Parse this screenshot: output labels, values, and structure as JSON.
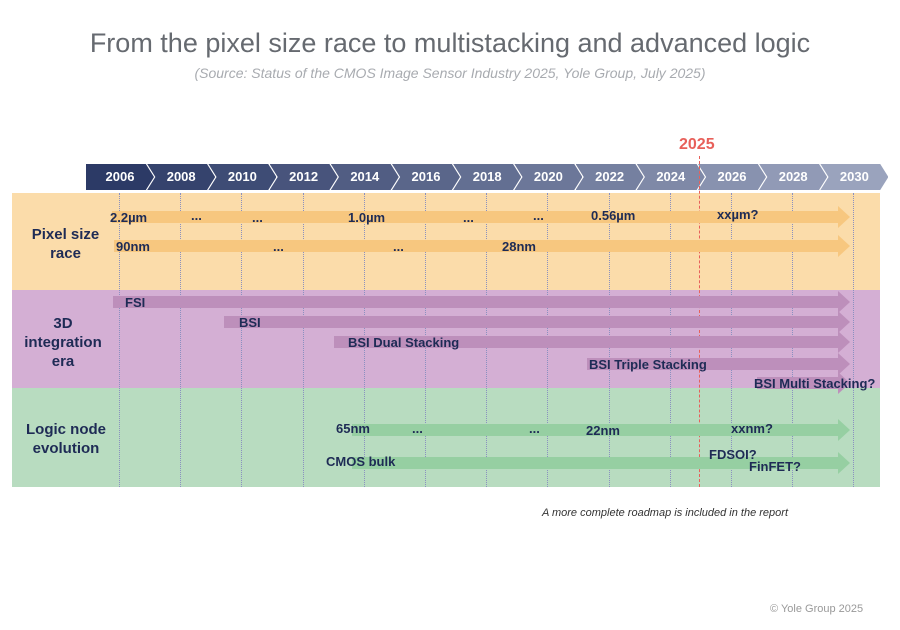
{
  "title": "From the pixel size race to multistacking and advanced logic",
  "subtitle": "(Source: Status of the CMOS Image Sensor Industry 2025, Yole Group, July 2025)",
  "current_year": "2025",
  "years": [
    "2006",
    "2008",
    "2010",
    "2012",
    "2014",
    "2016",
    "2018",
    "2020",
    "2022",
    "2024",
    "2026",
    "2028",
    "2030"
  ],
  "colors": {
    "pixel_band": "#fbdcaa",
    "integration_band": "#d4afd4",
    "logic_band": "#b8dcc0",
    "pixel_arrow": "#f7c77f",
    "integration_arrow": "#bd8fbb",
    "logic_arrow": "#96cfa2",
    "current_year_line": "#e8605a",
    "text": "#1e2b55"
  },
  "rows": {
    "pixel": {
      "label": "Pixel size race",
      "arrows": [
        {
          "labels": [
            "2.2µm",
            "...",
            "...",
            "1.0µm",
            "...",
            "...",
            "0.56µm",
            "xxµm?"
          ]
        },
        {
          "labels": [
            "90nm",
            "...",
            "...",
            "28nm"
          ]
        }
      ]
    },
    "integration": {
      "label": "3D integration era",
      "arrows": [
        {
          "label": "FSI"
        },
        {
          "label": "BSI"
        },
        {
          "label": "BSI Dual Stacking"
        },
        {
          "label": "BSI Triple Stacking"
        },
        {
          "label": "BSI Multi Stacking?"
        }
      ]
    },
    "logic": {
      "label": "Logic node evolution",
      "arrows": [
        {
          "labels": [
            "65nm",
            "...",
            "...",
            "22nm",
            "xxnm?"
          ]
        },
        {
          "labels": [
            "CMOS bulk",
            "FDSOI?",
            "FinFET?"
          ]
        }
      ]
    }
  },
  "note": "A more complete roadmap is included in the report",
  "copyright": "© Yole Group 2025"
}
